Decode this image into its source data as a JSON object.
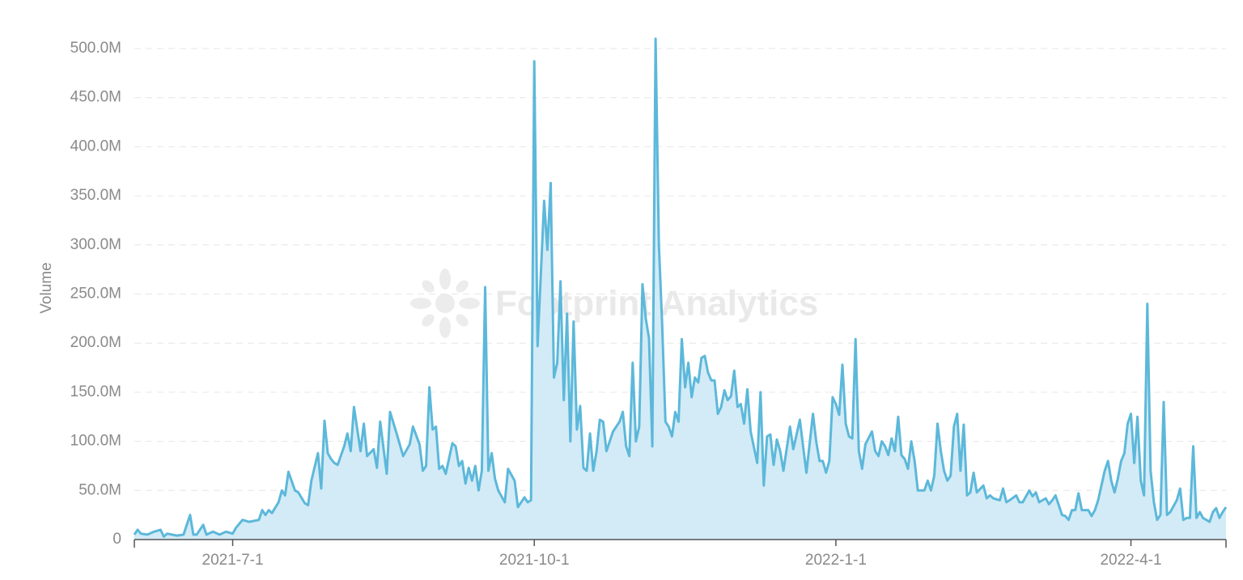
{
  "chart_data": {
    "type": "area-line",
    "y_label": "Volume",
    "watermark": "Footprint Analytics",
    "color": "#5cb8da",
    "fill_color": "#d3ebf6",
    "grid": true,
    "xlim": [
      "2021-6-1",
      "2022-4-30"
    ],
    "xticks": [
      "2021-7-1",
      "2021-10-1",
      "2022-1-1",
      "2022-4-1"
    ],
    "ylim": [
      0,
      500
    ],
    "yticks": [
      0,
      {
        "value": 50,
        "label": "50.0M"
      },
      {
        "value": 100,
        "label": "100.0M"
      },
      {
        "value": 150,
        "label": "150.0M"
      },
      {
        "value": 200,
        "label": "200.0M"
      },
      {
        "value": 250,
        "label": "250.0M"
      },
      {
        "value": 300,
        "label": "300.0M"
      },
      {
        "value": 350,
        "label": "350.0M"
      },
      {
        "value": 400,
        "label": "400.0M"
      },
      {
        "value": 450,
        "label": "450.0M"
      },
      {
        "value": 500,
        "label": "500.0M"
      }
    ],
    "x": [
      "2021-6-1",
      "2021-6-2",
      "2021-6-3",
      "2021-6-5",
      "2021-6-7",
      "2021-6-9",
      "2021-6-10",
      "2021-6-11",
      "2021-6-14",
      "2021-6-16",
      "2021-6-18",
      "2021-6-19",
      "2021-6-20",
      "2021-6-22",
      "2021-6-23",
      "2021-6-25",
      "2021-6-27",
      "2021-6-29",
      "2021-7-1",
      "2021-7-2",
      "2021-7-4",
      "2021-7-6",
      "2021-7-9",
      "2021-7-10",
      "2021-7-11",
      "2021-7-12",
      "2021-7-13",
      "2021-7-15",
      "2021-7-16",
      "2021-7-17",
      "2021-7-18",
      "2021-7-20",
      "2021-7-21",
      "2021-7-23",
      "2021-7-24",
      "2021-7-25",
      "2021-7-27",
      "2021-7-28",
      "2021-7-29",
      "2021-7-30",
      "2021-7-31",
      "2021-8-1",
      "2021-8-2",
      "2021-8-4",
      "2021-8-5",
      "2021-8-6",
      "2021-8-7",
      "2021-8-9",
      "2021-8-10",
      "2021-8-11",
      "2021-8-13",
      "2021-8-14",
      "2021-8-15",
      "2021-8-17",
      "2021-8-18",
      "2021-8-20",
      "2021-8-22",
      "2021-8-24",
      "2021-8-25",
      "2021-8-27",
      "2021-8-28",
      "2021-8-29",
      "2021-8-30",
      "2021-8-31",
      "2021-9-1",
      "2021-9-2",
      "2021-9-3",
      "2021-9-4",
      "2021-9-6",
      "2021-9-7",
      "2021-9-8",
      "2021-9-9",
      "2021-9-10",
      "2021-9-11",
      "2021-9-12",
      "2021-9-13",
      "2021-9-14",
      "2021-9-15",
      "2021-9-16",
      "2021-9-17",
      "2021-9-18",
      "2021-9-19",
      "2021-9-20",
      "2021-9-22",
      "2021-9-23",
      "2021-9-25",
      "2021-9-26",
      "2021-9-27",
      "2021-9-28",
      "2021-9-29",
      "2021-9-30",
      "2021-10-1",
      "2021-10-2",
      "2021-10-4",
      "2021-10-5",
      "2021-10-6",
      "2021-10-7",
      "2021-10-8",
      "2021-10-9",
      "2021-10-10",
      "2021-10-11",
      "2021-10-12",
      "2021-10-13",
      "2021-10-14",
      "2021-10-15",
      "2021-10-16",
      "2021-10-17",
      "2021-10-18",
      "2021-10-19",
      "2021-10-20",
      "2021-10-21",
      "2021-10-22",
      "2021-10-23",
      "2021-10-25",
      "2021-10-27",
      "2021-10-28",
      "2021-10-29",
      "2021-10-30",
      "2021-10-31",
      "2021-11-1",
      "2021-11-2",
      "2021-11-3",
      "2021-11-4",
      "2021-11-5",
      "2021-11-6",
      "2021-11-7",
      "2021-11-8",
      "2021-11-9",
      "2021-11-10",
      "2021-11-11",
      "2021-11-12",
      "2021-11-13",
      "2021-11-14",
      "2021-11-15",
      "2021-11-16",
      "2021-11-17",
      "2021-11-18",
      "2021-11-19",
      "2021-11-20",
      "2021-11-21",
      "2021-11-22",
      "2021-11-23",
      "2021-11-24",
      "2021-11-25",
      "2021-11-26",
      "2021-11-27",
      "2021-11-28",
      "2021-11-29",
      "2021-11-30",
      "2021-12-1",
      "2021-12-2",
      "2021-12-3",
      "2021-12-4",
      "2021-12-5",
      "2021-12-6",
      "2021-12-8",
      "2021-12-9",
      "2021-12-10",
      "2021-12-11",
      "2021-12-12",
      "2021-12-13",
      "2021-12-14",
      "2021-12-15",
      "2021-12-16",
      "2021-12-18",
      "2021-12-19",
      "2021-12-21",
      "2021-12-22",
      "2021-12-23",
      "2021-12-25",
      "2021-12-26",
      "2021-12-27",
      "2021-12-28",
      "2021-12-29",
      "2021-12-30",
      "2021-12-31",
      "2022-1-1",
      "2022-1-2",
      "2022-1-3",
      "2022-1-4",
      "2022-1-5",
      "2022-1-6",
      "2022-1-7",
      "2022-1-8",
      "2022-1-9",
      "2022-1-10",
      "2022-1-12",
      "2022-1-13",
      "2022-1-14",
      "2022-1-15",
      "2022-1-16",
      "2022-1-17",
      "2022-1-18",
      "2022-1-19",
      "2022-1-20",
      "2022-1-21",
      "2022-1-22",
      "2022-1-23",
      "2022-1-24",
      "2022-1-25",
      "2022-1-26",
      "2022-1-28",
      "2022-1-29",
      "2022-1-30",
      "2022-1-31",
      "2022-2-1",
      "2022-2-2",
      "2022-2-3",
      "2022-2-4",
      "2022-2-5",
      "2022-2-6",
      "2022-2-7",
      "2022-2-8",
      "2022-2-9",
      "2022-2-10",
      "2022-2-11",
      "2022-2-12",
      "2022-2-13",
      "2022-2-15",
      "2022-2-16",
      "2022-2-17",
      "2022-2-18",
      "2022-2-20",
      "2022-2-21",
      "2022-2-22",
      "2022-2-23",
      "2022-2-25",
      "2022-2-26",
      "2022-2-27",
      "2022-3-1",
      "2022-3-2",
      "2022-3-3",
      "2022-3-4",
      "2022-3-6",
      "2022-3-7",
      "2022-3-8",
      "2022-3-9",
      "2022-3-11",
      "2022-3-12",
      "2022-3-13",
      "2022-3-14",
      "2022-3-15",
      "2022-3-16",
      "2022-3-17",
      "2022-3-19",
      "2022-3-20",
      "2022-3-21",
      "2022-3-22",
      "2022-3-24",
      "2022-3-25",
      "2022-3-26",
      "2022-3-27",
      "2022-3-28",
      "2022-3-29",
      "2022-3-30",
      "2022-3-31",
      "2022-4-1",
      "2022-4-2",
      "2022-4-3",
      "2022-4-4",
      "2022-4-5",
      "2022-4-6",
      "2022-4-7",
      "2022-4-8",
      "2022-4-9",
      "2022-4-10",
      "2022-4-11",
      "2022-4-12",
      "2022-4-13",
      "2022-4-15",
      "2022-4-16",
      "2022-4-17",
      "2022-4-18",
      "2022-4-19",
      "2022-4-20",
      "2022-4-21",
      "2022-4-22",
      "2022-4-23",
      "2022-4-25",
      "2022-4-26",
      "2022-4-27",
      "2022-4-28",
      "2022-4-29",
      "2022-4-30"
    ],
    "values": [
      5,
      10,
      6,
      5,
      8,
      10,
      3,
      6,
      4,
      5,
      25,
      5,
      5,
      15,
      5,
      8,
      5,
      8,
      6,
      12,
      20,
      18,
      20,
      30,
      25,
      30,
      27,
      38,
      50,
      45,
      69,
      50,
      48,
      37,
      35,
      60,
      88,
      52,
      121,
      88,
      82,
      78,
      76,
      95,
      108,
      90,
      135,
      90,
      118,
      85,
      92,
      73,
      120,
      67,
      130,
      108,
      85,
      97,
      115,
      97,
      70,
      75,
      155,
      112,
      115,
      72,
      75,
      67,
      98,
      95,
      75,
      80,
      57,
      73,
      60,
      75,
      50,
      70,
      257,
      70,
      88,
      62,
      50,
      38,
      72,
      60,
      33,
      38,
      43,
      38,
      40,
      487,
      197,
      345,
      295,
      363,
      165,
      180,
      263,
      142,
      230,
      100,
      222,
      112,
      136,
      73,
      70,
      108,
      70,
      90,
      122,
      120,
      90,
      110,
      120,
      130,
      95,
      85,
      180,
      100,
      115,
      260,
      225,
      205,
      95,
      510,
      300,
      220,
      120,
      115,
      105,
      130,
      120,
      204,
      155,
      180,
      145,
      165,
      160,
      185,
      187,
      170,
      162,
      162,
      128,
      135,
      152,
      142,
      146,
      172,
      135,
      138,
      118,
      153,
      110,
      78,
      150,
      55,
      105,
      107,
      76,
      102,
      90,
      70,
      115,
      92,
      122,
      95,
      68,
      128,
      100,
      80,
      80,
      68,
      80,
      145,
      138,
      127,
      178,
      118,
      105,
      103,
      204,
      90,
      72,
      97,
      110,
      90,
      85,
      100,
      95,
      86,
      103,
      90,
      125,
      86,
      82,
      72,
      100,
      80,
      50,
      50,
      60,
      50,
      65,
      118,
      90,
      70,
      60,
      65,
      115,
      128,
      70,
      117,
      45,
      48,
      68,
      48,
      55,
      42,
      45,
      42,
      40,
      52,
      38,
      40,
      45,
      38,
      38,
      50,
      44,
      48,
      38,
      42,
      36,
      40,
      45,
      25,
      24,
      20,
      30,
      30,
      47,
      30,
      30,
      24,
      30,
      40,
      70,
      80,
      60,
      48,
      62,
      80,
      88,
      118,
      128,
      78,
      125,
      60,
      45,
      240,
      70,
      38,
      20,
      25,
      140,
      25,
      28,
      40,
      52,
      20,
      22,
      22,
      95,
      22,
      28,
      22,
      18,
      28,
      32,
      22,
      28,
      33
    ]
  }
}
